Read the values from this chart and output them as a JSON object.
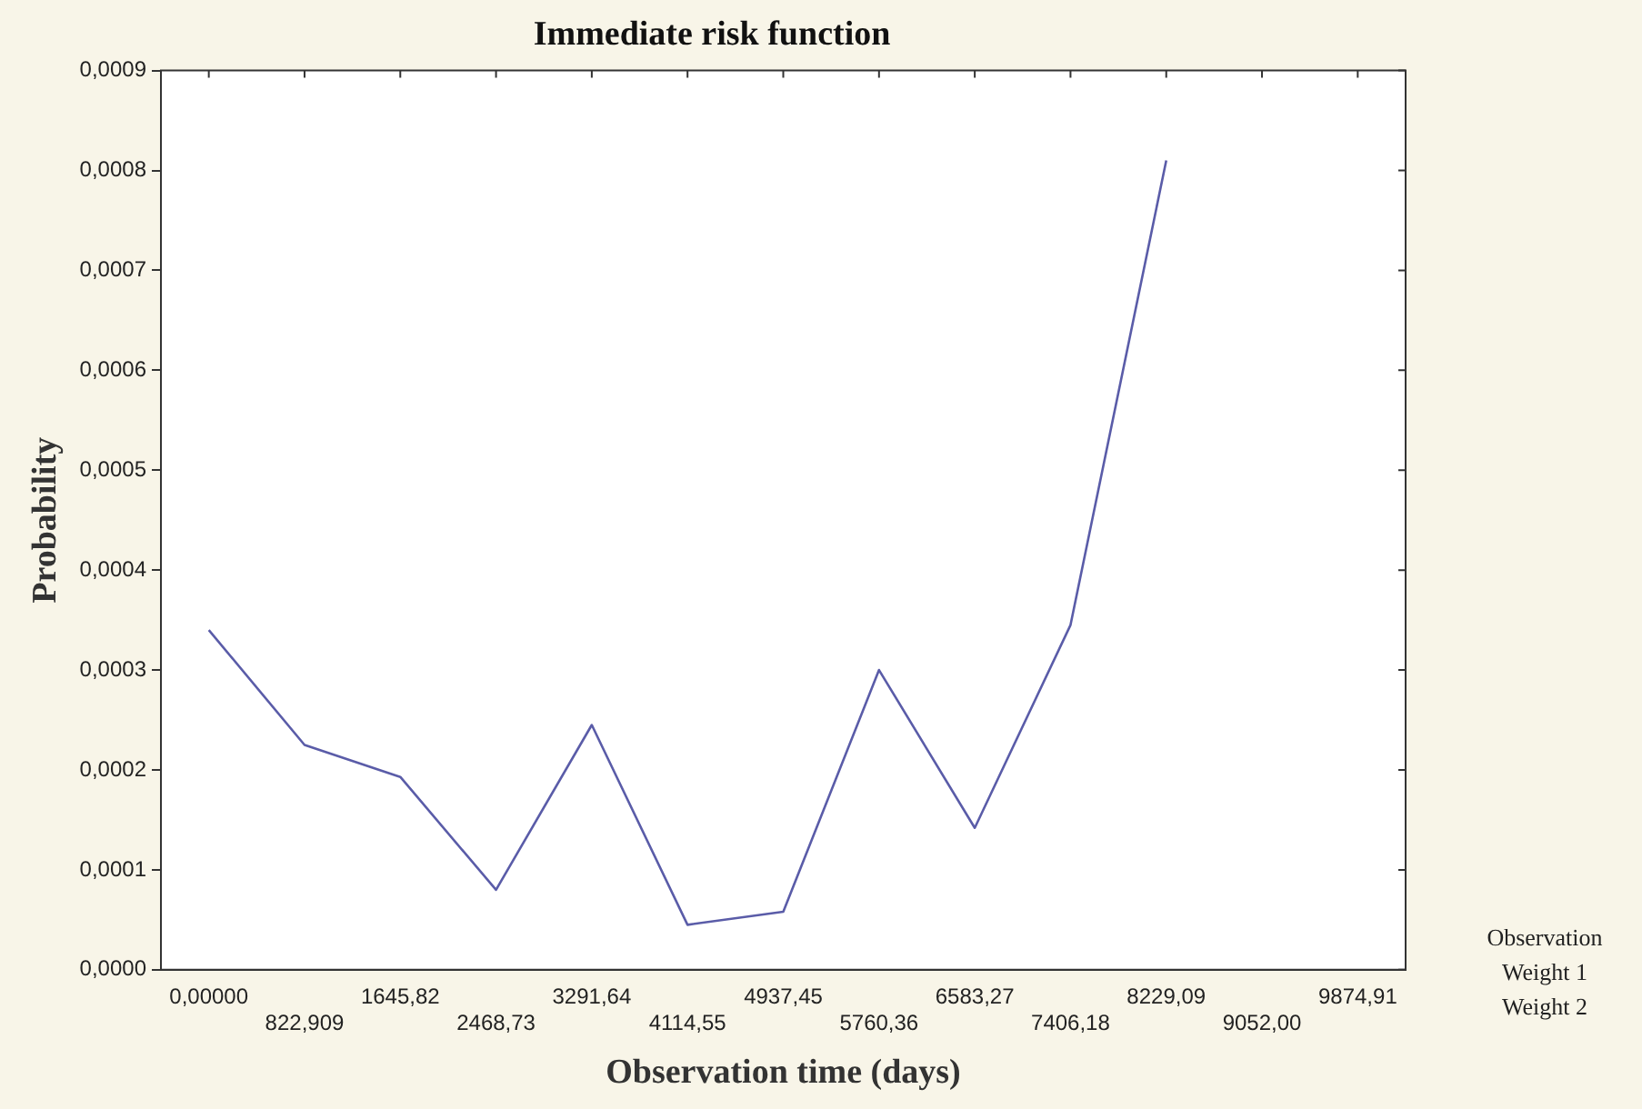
{
  "chart_data": {
    "type": "line",
    "title": "Immediate risk function",
    "xlabel": "Observation time (days)",
    "ylabel": "Probability",
    "categories": [
      "0,00000",
      "822,909",
      "1645,82",
      "2468,73",
      "3291,64",
      "4114,55",
      "4937,45",
      "5760,36",
      "6583,27",
      "7406,18",
      "8229,09",
      "9052,00",
      "9874,91"
    ],
    "series": [
      {
        "color": "#5a5ca8",
        "values": [
          0.00034,
          0.000225,
          0.000193,
          8e-05,
          0.000245,
          4.5e-05,
          5.8e-05,
          0.0003,
          0.000142,
          0.000345,
          0.00081,
          null,
          null
        ]
      }
    ],
    "ylim": [
      0,
      0.0009
    ],
    "yticks": [
      {
        "value": 0,
        "label": "0,0000"
      },
      {
        "value": 0.0001,
        "label": "0,0001"
      },
      {
        "value": 0.0002,
        "label": "0,0002"
      },
      {
        "value": 0.0003,
        "label": "0,0003"
      },
      {
        "value": 0.0004,
        "label": "0,0004"
      },
      {
        "value": 0.0005,
        "label": "0,0005"
      },
      {
        "value": 0.0006,
        "label": "0,0006"
      },
      {
        "value": 0.0007,
        "label": "0,0007"
      },
      {
        "value": 0.0008,
        "label": "0,0008"
      },
      {
        "value": 0.0009,
        "label": "0,0009"
      }
    ],
    "grid": false,
    "legend": false,
    "marker": "none",
    "line_style": "solid",
    "annotations": [
      "Observation",
      "Weight 1",
      "Weight 2"
    ]
  }
}
